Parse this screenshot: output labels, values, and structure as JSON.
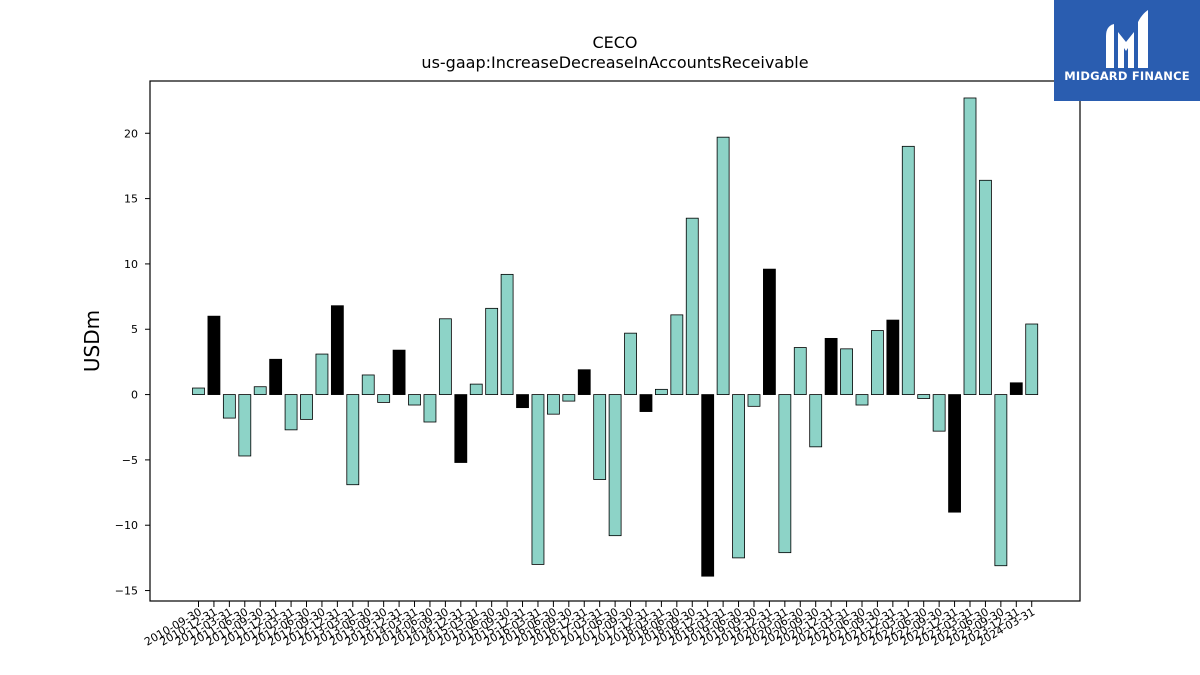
{
  "chart_data": {
    "type": "bar",
    "title": "CECO",
    "subtitle": "us-gaap:IncreaseDecreaseInAccountsReceivable",
    "xlabel": "",
    "ylabel": "USDm",
    "ylim": [
      -15.8,
      24.0
    ],
    "yticks": [
      -15,
      -10,
      -5,
      0,
      5,
      10,
      15,
      20
    ],
    "grid": false,
    "legend": "none",
    "colors": {
      "quarter": "#8dd3c7",
      "fiscal_q4": "#000000",
      "edge": "#000000"
    },
    "categories": [
      "2010-09-30",
      "2010-12-31",
      "2011-03-31",
      "2011-06-30",
      "2011-09-30",
      "2011-12-31",
      "2012-03-31",
      "2012-06-30",
      "2012-09-30",
      "2012-12-31",
      "2013-03-31",
      "2013-06-30",
      "2013-09-30",
      "2013-12-31",
      "2014-03-31",
      "2014-06-30",
      "2014-09-30",
      "2014-12-31",
      "2015-03-31",
      "2015-06-30",
      "2015-09-30",
      "2015-12-31",
      "2016-03-31",
      "2016-06-30",
      "2016-09-30",
      "2016-12-31",
      "2017-03-31",
      "2017-06-30",
      "2017-09-30",
      "2017-12-31",
      "2018-03-31",
      "2018-06-30",
      "2018-09-30",
      "2018-12-31",
      "2019-03-31",
      "2019-06-30",
      "2019-09-30",
      "2019-12-31",
      "2020-03-31",
      "2020-06-30",
      "2020-09-30",
      "2020-12-31",
      "2021-03-31",
      "2021-06-30",
      "2021-09-30",
      "2021-12-31",
      "2022-03-31",
      "2022-06-30",
      "2022-09-30",
      "2022-12-31",
      "2023-03-31",
      "2023-06-30",
      "2023-09-30",
      "2023-12-31",
      "2024-03-31"
    ],
    "values": [
      0.5,
      6.0,
      -1.8,
      -4.7,
      0.6,
      2.7,
      -2.7,
      -1.9,
      3.1,
      6.8,
      -6.9,
      1.5,
      -0.6,
      3.4,
      -0.8,
      -2.1,
      5.8,
      -5.2,
      0.8,
      6.6,
      9.2,
      -1.0,
      -13.0,
      -1.5,
      -0.5,
      1.9,
      -6.5,
      -10.8,
      4.7,
      -1.3,
      0.4,
      6.1,
      13.5,
      -13.9,
      19.7,
      -12.5,
      -0.9,
      9.6,
      -12.1,
      3.6,
      -4.0,
      4.3,
      3.5,
      -0.8,
      4.9,
      5.7,
      19.0,
      -0.3,
      -2.8,
      -9.0,
      22.7,
      16.4,
      -13.1,
      0.9,
      5.4
    ],
    "highlight": [
      false,
      true,
      false,
      false,
      false,
      true,
      false,
      false,
      false,
      true,
      false,
      false,
      false,
      true,
      false,
      false,
      false,
      true,
      false,
      false,
      false,
      true,
      false,
      false,
      false,
      true,
      false,
      false,
      false,
      true,
      false,
      false,
      false,
      true,
      false,
      false,
      false,
      true,
      false,
      false,
      false,
      true,
      false,
      false,
      false,
      true,
      false,
      false,
      false,
      true,
      false,
      false,
      false,
      true,
      false
    ]
  },
  "logo": {
    "text": "MIDGARD FINANCE",
    "icon": "midgard-logo-icon"
  }
}
